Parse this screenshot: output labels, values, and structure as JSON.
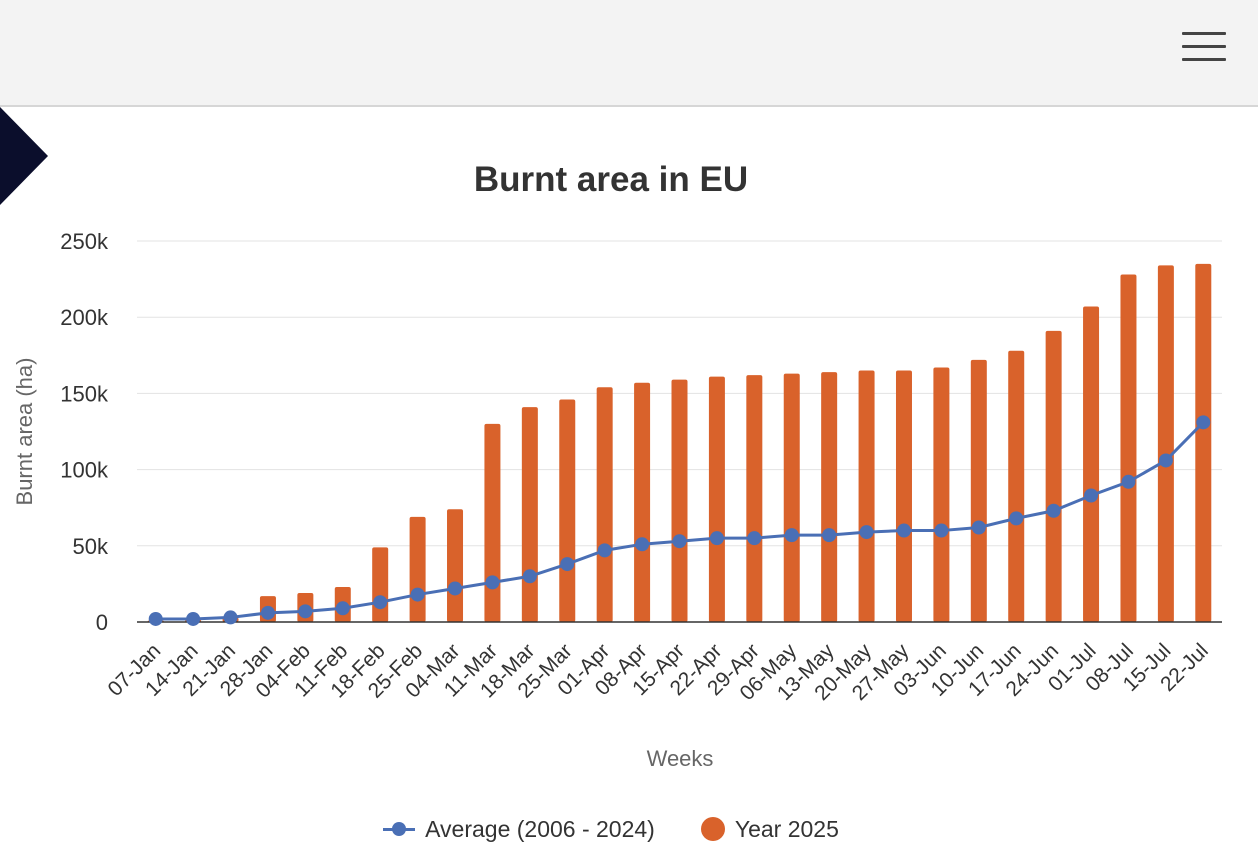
{
  "header": {
    "menu_icon": "hamburger-menu-icon"
  },
  "chart_data": {
    "type": "bar",
    "title": "Burnt area in EU",
    "xlabel": "Weeks",
    "ylabel": "Burnt area (ha)",
    "ylim": [
      0,
      250000
    ],
    "yticks": [
      "0",
      "50k",
      "100k",
      "150k",
      "200k",
      "250k"
    ],
    "categories": [
      "07-Jan",
      "14-Jan",
      "21-Jan",
      "28-Jan",
      "04-Feb",
      "11-Feb",
      "18-Feb",
      "25-Feb",
      "04-Mar",
      "11-Mar",
      "18-Mar",
      "25-Mar",
      "01-Apr",
      "08-Apr",
      "15-Apr",
      "22-Apr",
      "29-Apr",
      "06-May",
      "13-May",
      "20-May",
      "27-May",
      "03-Jun",
      "10-Jun",
      "17-Jun",
      "24-Jun",
      "01-Jul",
      "08-Jul",
      "15-Jul",
      "22-Jul"
    ],
    "series": [
      {
        "name": "Year 2025",
        "kind": "bar",
        "color": "#d9622b",
        "values": [
          1000,
          1500,
          3000,
          17000,
          19000,
          23000,
          49000,
          69000,
          74000,
          130000,
          141000,
          146000,
          154000,
          157000,
          159000,
          161000,
          162000,
          163000,
          164000,
          165000,
          165000,
          167000,
          172000,
          178000,
          191000,
          207000,
          228000,
          234000,
          235000
        ]
      },
      {
        "name": "Average (2006 - 2024)",
        "kind": "line",
        "color": "#4a6fb5",
        "values": [
          2000,
          2000,
          3000,
          6000,
          7000,
          9000,
          13000,
          18000,
          22000,
          26000,
          30000,
          38000,
          47000,
          51000,
          53000,
          55000,
          55000,
          57000,
          57000,
          59000,
          60000,
          60000,
          62000,
          68000,
          73000,
          83000,
          92000,
          106000,
          131000
        ]
      }
    ],
    "grid": true,
    "legend_position": "bottom"
  }
}
